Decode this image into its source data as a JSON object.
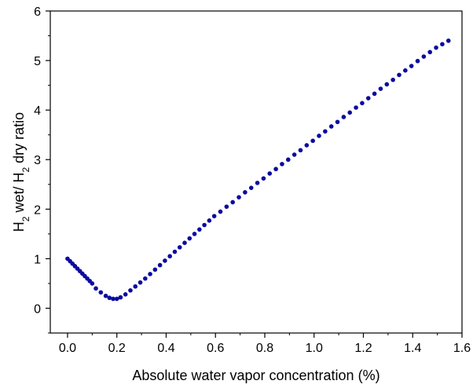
{
  "chart_data": {
    "type": "scatter",
    "xlabel": "Absolute water vapor concentration (%)",
    "ylabel": {
      "p1": "H",
      "s1": "2",
      "p2": " wet/ H",
      "s2": "2",
      "p3": " dry ratio"
    },
    "xlim": [
      -0.07,
      1.6
    ],
    "ylim": [
      -0.5,
      6
    ],
    "xticks": [
      0.0,
      0.2,
      0.4,
      0.6,
      0.8,
      1.0,
      1.2,
      1.4,
      1.6
    ],
    "xtick_labels": [
      "0.0",
      "0.2",
      "0.4",
      "0.6",
      "0.8",
      "1.0",
      "1.2",
      "1.4",
      "1.6"
    ],
    "yticks": [
      0,
      1,
      2,
      3,
      4,
      5,
      6
    ],
    "ytick_labels": [
      "0",
      "1",
      "2",
      "3",
      "4",
      "5",
      "6"
    ],
    "grid": false,
    "marker_color": "#0a0aa0",
    "points": [
      {
        "x": 0.0,
        "y": 1.0
      },
      {
        "x": 0.01,
        "y": 0.95
      },
      {
        "x": 0.02,
        "y": 0.9
      },
      {
        "x": 0.03,
        "y": 0.85
      },
      {
        "x": 0.04,
        "y": 0.8
      },
      {
        "x": 0.05,
        "y": 0.75
      },
      {
        "x": 0.06,
        "y": 0.7
      },
      {
        "x": 0.07,
        "y": 0.65
      },
      {
        "x": 0.08,
        "y": 0.6
      },
      {
        "x": 0.09,
        "y": 0.55
      },
      {
        "x": 0.1,
        "y": 0.5
      },
      {
        "x": 0.115,
        "y": 0.4
      },
      {
        "x": 0.135,
        "y": 0.32
      },
      {
        "x": 0.155,
        "y": 0.25
      },
      {
        "x": 0.17,
        "y": 0.21
      },
      {
        "x": 0.185,
        "y": 0.19
      },
      {
        "x": 0.2,
        "y": 0.19
      },
      {
        "x": 0.215,
        "y": 0.22
      },
      {
        "x": 0.235,
        "y": 0.28
      },
      {
        "x": 0.255,
        "y": 0.36
      },
      {
        "x": 0.275,
        "y": 0.44
      },
      {
        "x": 0.295,
        "y": 0.52
      },
      {
        "x": 0.315,
        "y": 0.6
      },
      {
        "x": 0.335,
        "y": 0.69
      },
      {
        "x": 0.355,
        "y": 0.78
      },
      {
        "x": 0.375,
        "y": 0.87
      },
      {
        "x": 0.395,
        "y": 0.96
      },
      {
        "x": 0.415,
        "y": 1.05
      },
      {
        "x": 0.435,
        "y": 1.14
      },
      {
        "x": 0.455,
        "y": 1.23
      },
      {
        "x": 0.475,
        "y": 1.32
      },
      {
        "x": 0.495,
        "y": 1.41
      },
      {
        "x": 0.515,
        "y": 1.5
      },
      {
        "x": 0.535,
        "y": 1.59
      },
      {
        "x": 0.555,
        "y": 1.68
      },
      {
        "x": 0.575,
        "y": 1.77
      },
      {
        "x": 0.595,
        "y": 1.86
      },
      {
        "x": 0.62,
        "y": 1.95
      },
      {
        "x": 0.645,
        "y": 2.05
      },
      {
        "x": 0.67,
        "y": 2.14
      },
      {
        "x": 0.695,
        "y": 2.24
      },
      {
        "x": 0.72,
        "y": 2.34
      },
      {
        "x": 0.745,
        "y": 2.43
      },
      {
        "x": 0.77,
        "y": 2.53
      },
      {
        "x": 0.795,
        "y": 2.62
      },
      {
        "x": 0.82,
        "y": 2.72
      },
      {
        "x": 0.845,
        "y": 2.81
      },
      {
        "x": 0.87,
        "y": 2.91
      },
      {
        "x": 0.895,
        "y": 3.0
      },
      {
        "x": 0.92,
        "y": 3.1
      },
      {
        "x": 0.945,
        "y": 3.19
      },
      {
        "x": 0.97,
        "y": 3.29
      },
      {
        "x": 0.995,
        "y": 3.38
      },
      {
        "x": 1.02,
        "y": 3.48
      },
      {
        "x": 1.045,
        "y": 3.57
      },
      {
        "x": 1.07,
        "y": 3.67
      },
      {
        "x": 1.095,
        "y": 3.76
      },
      {
        "x": 1.12,
        "y": 3.86
      },
      {
        "x": 1.145,
        "y": 3.95
      },
      {
        "x": 1.17,
        "y": 4.05
      },
      {
        "x": 1.195,
        "y": 4.14
      },
      {
        "x": 1.22,
        "y": 4.24
      },
      {
        "x": 1.245,
        "y": 4.33
      },
      {
        "x": 1.27,
        "y": 4.43
      },
      {
        "x": 1.295,
        "y": 4.52
      },
      {
        "x": 1.32,
        "y": 4.61
      },
      {
        "x": 1.345,
        "y": 4.71
      },
      {
        "x": 1.37,
        "y": 4.8
      },
      {
        "x": 1.395,
        "y": 4.89
      },
      {
        "x": 1.42,
        "y": 4.99
      },
      {
        "x": 1.445,
        "y": 5.08
      },
      {
        "x": 1.47,
        "y": 5.17
      },
      {
        "x": 1.495,
        "y": 5.26
      },
      {
        "x": 1.52,
        "y": 5.33
      },
      {
        "x": 1.545,
        "y": 5.4
      }
    ]
  }
}
